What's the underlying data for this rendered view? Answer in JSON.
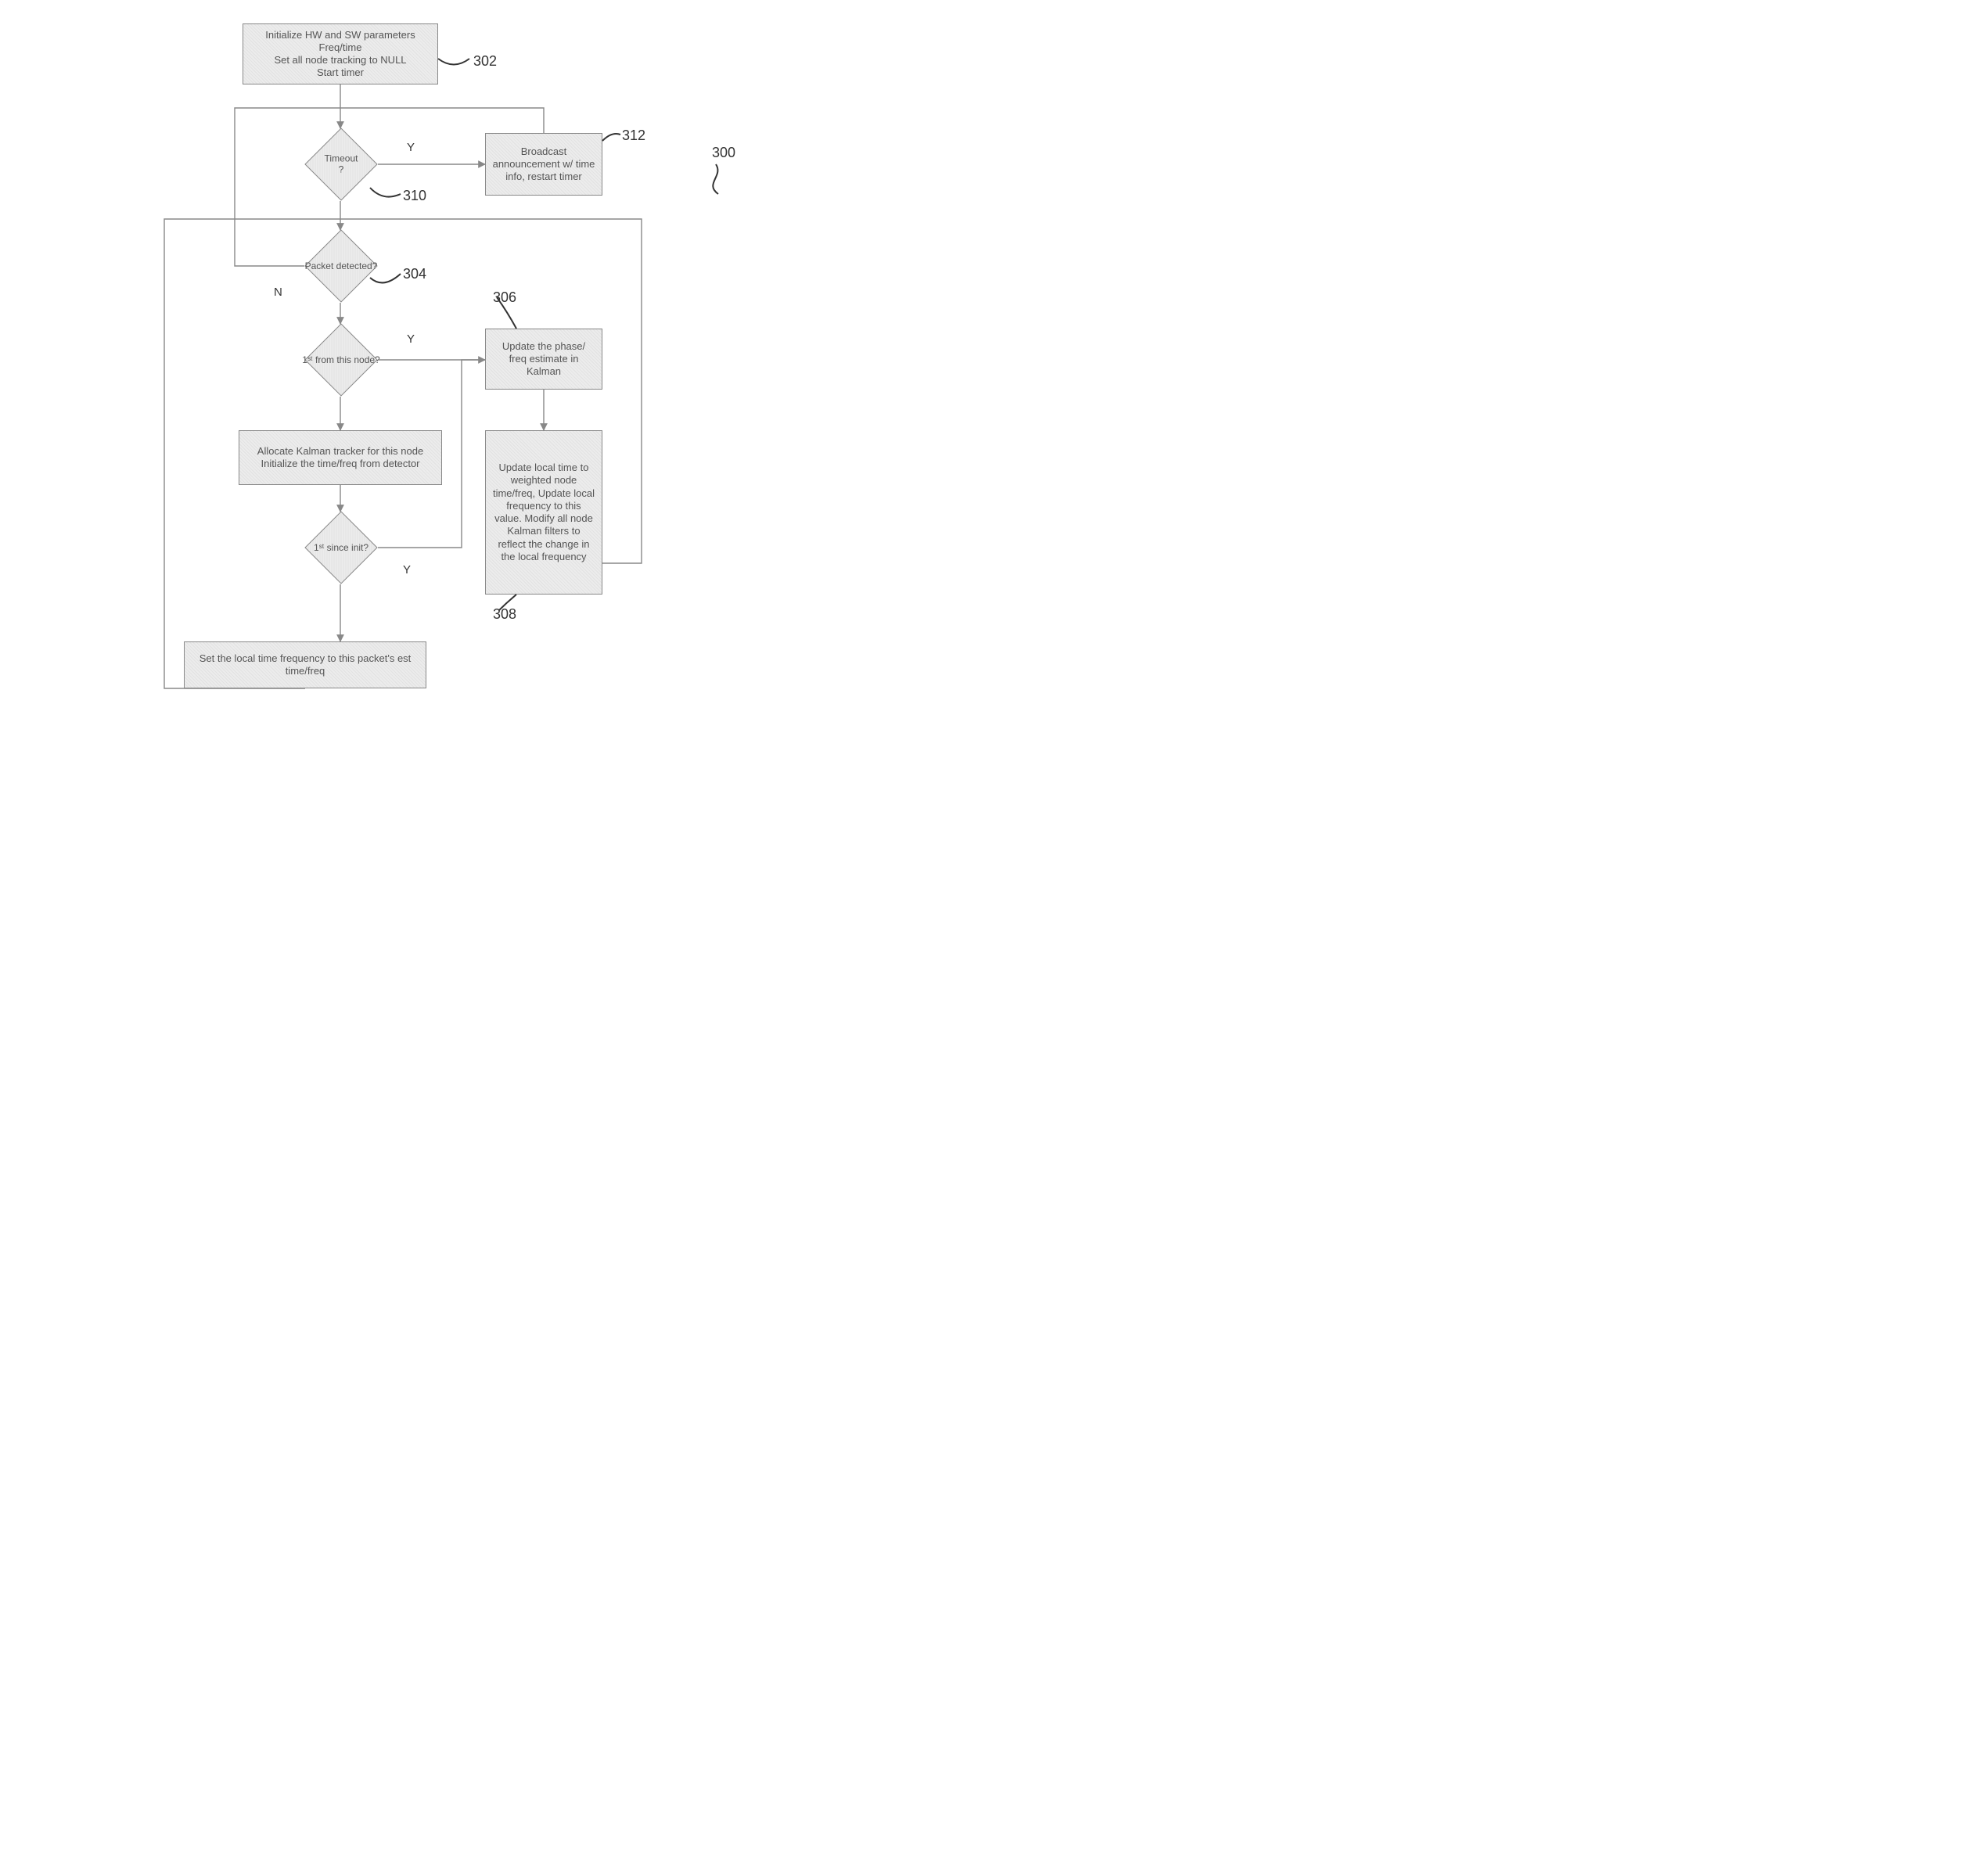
{
  "nodes": {
    "init": {
      "text": "Initialize HW and SW parameters\nFreq/time\nSet all node tracking to NULL\nStart timer"
    },
    "timeout": {
      "text": "Timeout\n?"
    },
    "broadcast": {
      "text": "Broadcast announcement w/ time info, restart timer"
    },
    "packet": {
      "text": "Packet detected?"
    },
    "firstnode": {
      "text": "1ˢᵗ from this node?"
    },
    "updphase": {
      "text": "Update the phase/ freq estimate in Kalman"
    },
    "alloc": {
      "text": "Allocate Kalman tracker for this node\nInitialize the time/freq from detector"
    },
    "updlocal": {
      "text": "Update local time to weighted node time/freq, Update local frequency to this value.  Modify all node Kalman filters to reflect the change in the local frequency"
    },
    "sinceinit": {
      "text": "1ˢᵗ since init?"
    },
    "setlocal": {
      "text": "Set the local time frequency to this packet's est time/freq"
    }
  },
  "labels": {
    "l302": "302",
    "l304": "304",
    "l306": "306",
    "l308": "308",
    "l310": "310",
    "l312": "312",
    "l300": "300",
    "y1": "Y",
    "y2": "Y",
    "y3": "Y",
    "n": "N"
  },
  "style": {
    "box_fontsize": 13,
    "diamond_fontsize": 12,
    "ref_fontsize": 18,
    "yn_fontsize": 15,
    "text_color": "#555"
  }
}
